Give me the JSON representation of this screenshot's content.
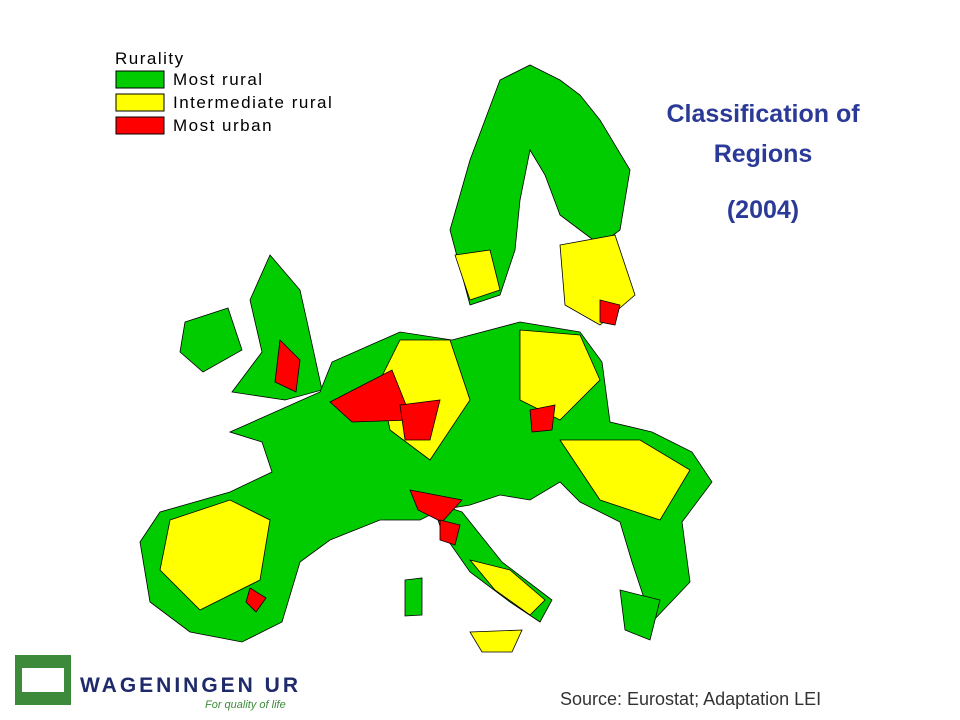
{
  "legend": {
    "title": "Rurality",
    "items": [
      {
        "label": "Most rural",
        "color": "#00cc00"
      },
      {
        "label": "Intermediate rural",
        "color": "#ffff00"
      },
      {
        "label": "Most urban",
        "color": "#ff0000"
      }
    ]
  },
  "title": {
    "line1": "Classification of",
    "line2": "Regions",
    "line3": "(2004)"
  },
  "source": "Source: Eurostat; Adaptation LEI",
  "logo": {
    "name": "WAGENINGEN UR",
    "tagline": "For quality of life"
  }
}
